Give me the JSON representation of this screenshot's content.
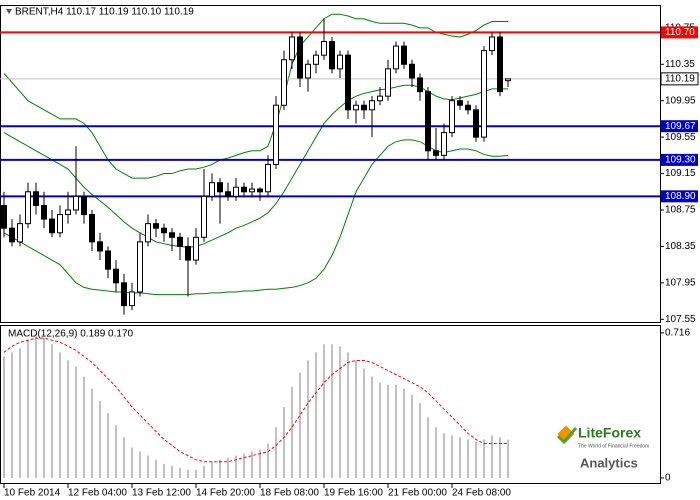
{
  "chart_data": [
    {
      "type": "candlestick",
      "legend_text": "BRENT,H4 110.17 110.19 110.10 110.19",
      "categories": [
        "10 Feb 2014",
        null,
        null,
        null,
        null,
        null,
        null,
        null,
        "12 Feb 04:00",
        null,
        null,
        null,
        null,
        null,
        null,
        null,
        "13 Feb 12:00",
        null,
        null,
        null,
        null,
        null,
        null,
        null,
        "14 Feb 20:00",
        null,
        null,
        null,
        null,
        null,
        null,
        null,
        "18 Feb 08:00",
        null,
        null,
        null,
        null,
        null,
        null,
        null,
        "19 Feb 16:00",
        null,
        null,
        null,
        null,
        null,
        null,
        null,
        "21 Feb 00:00",
        null,
        null,
        null,
        null,
        null,
        null,
        null,
        "24 Feb 08:00",
        null,
        null,
        null,
        null,
        null,
        null,
        null
      ],
      "open": [
        108.8,
        108.55,
        108.4,
        108.6,
        108.95,
        108.8,
        108.65,
        108.5,
        108.7,
        108.75,
        108.9,
        108.7,
        108.4,
        108.3,
        108.1,
        107.95,
        107.7,
        107.85,
        108.4,
        108.6,
        108.55,
        108.5,
        108.45,
        108.35,
        108.2,
        108.45,
        108.9,
        109.05,
        108.95,
        108.9,
        109.0,
        108.95,
        108.98,
        108.95,
        109.25,
        109.9,
        110.4,
        110.65,
        110.2,
        110.35,
        110.45,
        110.6,
        110.3,
        110.45,
        109.85,
        109.9,
        109.85,
        109.95,
        110.0,
        110.3,
        110.55,
        110.35,
        110.2,
        110.05,
        109.4,
        109.35,
        109.6,
        109.95,
        109.9,
        109.85,
        109.55,
        110.5,
        110.65,
        110.17
      ],
      "high": [
        108.95,
        108.65,
        108.7,
        109.05,
        109.05,
        108.95,
        108.75,
        108.8,
        108.95,
        109.45,
        108.95,
        108.75,
        108.5,
        108.35,
        108.2,
        108.05,
        107.95,
        108.5,
        108.7,
        108.65,
        108.6,
        108.55,
        108.5,
        108.45,
        108.55,
        109.2,
        109.15,
        109.1,
        109.05,
        109.1,
        109.05,
        109.05,
        109.0,
        109.35,
        110.0,
        110.5,
        110.7,
        110.7,
        110.4,
        110.5,
        110.85,
        110.65,
        110.5,
        110.5,
        109.95,
        109.95,
        110.0,
        110.1,
        110.4,
        110.6,
        110.6,
        110.4,
        110.25,
        110.1,
        109.65,
        109.7,
        110.0,
        110.0,
        109.95,
        109.9,
        110.55,
        110.7,
        110.7,
        110.19
      ],
      "low": [
        108.45,
        108.35,
        108.35,
        108.55,
        108.7,
        108.55,
        108.45,
        108.45,
        108.6,
        108.7,
        108.6,
        108.3,
        108.2,
        108.0,
        107.85,
        107.6,
        107.65,
        107.8,
        108.35,
        108.45,
        108.4,
        108.3,
        108.2,
        107.8,
        108.15,
        108.4,
        108.85,
        108.6,
        108.85,
        108.85,
        108.9,
        108.9,
        108.85,
        108.9,
        109.2,
        109.85,
        110.3,
        110.1,
        110.05,
        110.25,
        110.4,
        110.25,
        110.2,
        109.75,
        109.7,
        109.75,
        109.55,
        109.9,
        109.95,
        110.25,
        110.3,
        110.1,
        109.95,
        109.3,
        109.3,
        109.3,
        109.55,
        109.85,
        109.8,
        109.5,
        109.5,
        110.45,
        110.0,
        110.1
      ],
      "close": [
        108.55,
        108.4,
        108.6,
        108.95,
        108.8,
        108.65,
        108.5,
        108.7,
        108.75,
        108.9,
        108.7,
        108.4,
        108.3,
        108.1,
        107.95,
        107.7,
        107.85,
        108.4,
        108.6,
        108.55,
        108.5,
        108.45,
        108.35,
        108.2,
        108.45,
        108.9,
        109.05,
        108.95,
        108.9,
        109.0,
        108.95,
        108.98,
        108.95,
        109.25,
        109.9,
        110.4,
        110.65,
        110.2,
        110.35,
        110.45,
        110.6,
        110.3,
        110.45,
        109.85,
        109.9,
        109.85,
        109.95,
        110.0,
        110.3,
        110.55,
        110.35,
        110.2,
        110.05,
        109.4,
        109.35,
        109.6,
        109.95,
        109.9,
        109.85,
        109.55,
        110.5,
        110.65,
        110.05,
        110.19
      ],
      "bollinger": {
        "color": "#008000",
        "upper": [
          110.25,
          110.15,
          110.05,
          109.95,
          109.9,
          109.85,
          109.8,
          109.75,
          109.75,
          109.75,
          109.7,
          109.6,
          109.45,
          109.3,
          109.2,
          109.15,
          109.1,
          109.1,
          109.1,
          109.12,
          109.15,
          109.15,
          109.18,
          109.2,
          109.2,
          109.22,
          109.25,
          109.3,
          109.32,
          109.35,
          109.38,
          109.4,
          109.4,
          109.45,
          109.7,
          110.0,
          110.35,
          110.55,
          110.65,
          110.75,
          110.85,
          110.9,
          110.9,
          110.88,
          110.85,
          110.85,
          110.82,
          110.8,
          110.8,
          110.8,
          110.8,
          110.78,
          110.75,
          110.75,
          110.7,
          110.68,
          110.66,
          110.65,
          110.68,
          110.72,
          110.78,
          110.82,
          110.82,
          110.82
        ],
        "middle": [
          109.6,
          109.55,
          109.5,
          109.45,
          109.4,
          109.35,
          109.3,
          109.25,
          109.2,
          109.1,
          109.0,
          108.92,
          108.85,
          108.78,
          108.7,
          108.62,
          108.55,
          108.5,
          108.45,
          108.4,
          108.38,
          108.36,
          108.35,
          108.34,
          108.35,
          108.38,
          108.42,
          108.46,
          108.5,
          108.55,
          108.58,
          108.62,
          108.66,
          108.72,
          108.82,
          108.95,
          109.1,
          109.25,
          109.4,
          109.55,
          109.7,
          109.8,
          109.88,
          109.95,
          110.0,
          110.03,
          110.05,
          110.07,
          110.08,
          110.1,
          110.12,
          110.12,
          110.1,
          110.05,
          110.0,
          109.97,
          109.96,
          109.98,
          110.0,
          110.02,
          110.05,
          110.08,
          110.08,
          110.08
        ],
        "lower": [
          108.5,
          108.45,
          108.4,
          108.35,
          108.3,
          108.25,
          108.2,
          108.15,
          108.05,
          107.95,
          107.9,
          107.88,
          107.87,
          107.86,
          107.85,
          107.85,
          107.84,
          107.84,
          107.83,
          107.82,
          107.82,
          107.82,
          107.82,
          107.82,
          107.83,
          107.83,
          107.84,
          107.84,
          107.85,
          107.85,
          107.86,
          107.86,
          107.87,
          107.88,
          107.88,
          107.89,
          107.9,
          107.92,
          107.95,
          108.0,
          108.1,
          108.25,
          108.45,
          108.7,
          108.95,
          109.1,
          109.25,
          109.35,
          109.45,
          109.5,
          109.52,
          109.52,
          109.5,
          109.45,
          109.4,
          109.38,
          109.4,
          109.42,
          109.42,
          109.4,
          109.36,
          109.34,
          109.34,
          109.35
        ]
      },
      "ylim": [
        107.52,
        110.99
      ],
      "yticks": [
        110.75,
        110.35,
        109.95,
        109.55,
        109.15,
        108.75,
        108.35,
        107.95,
        107.55
      ],
      "levels": [
        {
          "value": 110.7,
          "label": "110.70",
          "color": "#ff0000"
        },
        {
          "value": 109.67,
          "label": "109.67",
          "color": "#0000cc"
        },
        {
          "value": 109.3,
          "label": "109.30",
          "color": "#0000cc"
        },
        {
          "value": 108.9,
          "label": "108.90",
          "color": "#0000cc"
        }
      ],
      "current_price": {
        "value": 110.19,
        "label": "110.19",
        "color": "#c0c0c0"
      }
    },
    {
      "type": "macd",
      "title": "MACD(12,26,9) 0.189 0.170",
      "series": [
        {
          "color": "#c0c0c0",
          "values": [
            0.6,
            0.62,
            0.64,
            0.68,
            0.7,
            0.69,
            0.66,
            0.62,
            0.58,
            0.55,
            0.5,
            0.44,
            0.38,
            0.32,
            0.26,
            0.2,
            0.15,
            0.13,
            0.11,
            0.09,
            0.07,
            0.06,
            0.05,
            0.04,
            0.04,
            0.06,
            0.08,
            0.09,
            0.1,
            0.11,
            0.12,
            0.13,
            0.14,
            0.17,
            0.25,
            0.35,
            0.45,
            0.52,
            0.58,
            0.62,
            0.66,
            0.66,
            0.65,
            0.62,
            0.58,
            0.54,
            0.5,
            0.47,
            0.46,
            0.46,
            0.44,
            0.41,
            0.37,
            0.3,
            0.25,
            0.22,
            0.21,
            0.2,
            0.19,
            0.18,
            0.19,
            0.21,
            0.2,
            0.189
          ]
        },
        {
          "color": "#ff0000",
          "values": [
            0.62,
            0.65,
            0.67,
            0.68,
            0.69,
            0.69,
            0.68,
            0.67,
            0.65,
            0.63,
            0.6,
            0.57,
            0.53,
            0.49,
            0.45,
            0.4,
            0.35,
            0.31,
            0.27,
            0.23,
            0.19,
            0.16,
            0.13,
            0.11,
            0.09,
            0.08,
            0.08,
            0.08,
            0.08,
            0.09,
            0.1,
            0.11,
            0.12,
            0.13,
            0.16,
            0.2,
            0.25,
            0.31,
            0.37,
            0.42,
            0.47,
            0.51,
            0.54,
            0.57,
            0.58,
            0.58,
            0.57,
            0.55,
            0.53,
            0.51,
            0.49,
            0.47,
            0.45,
            0.42,
            0.38,
            0.34,
            0.3,
            0.26,
            0.22,
            0.19,
            0.17,
            0.17,
            0.17,
            0.17
          ]
        }
      ],
      "ylim": [
        -0.025,
        0.75
      ],
      "yticks": [
        0.716,
        0
      ]
    }
  ],
  "logo": {
    "name": "LiteForex",
    "tagline": "The World of Financial Freedom",
    "subtitle": "Analytics"
  }
}
